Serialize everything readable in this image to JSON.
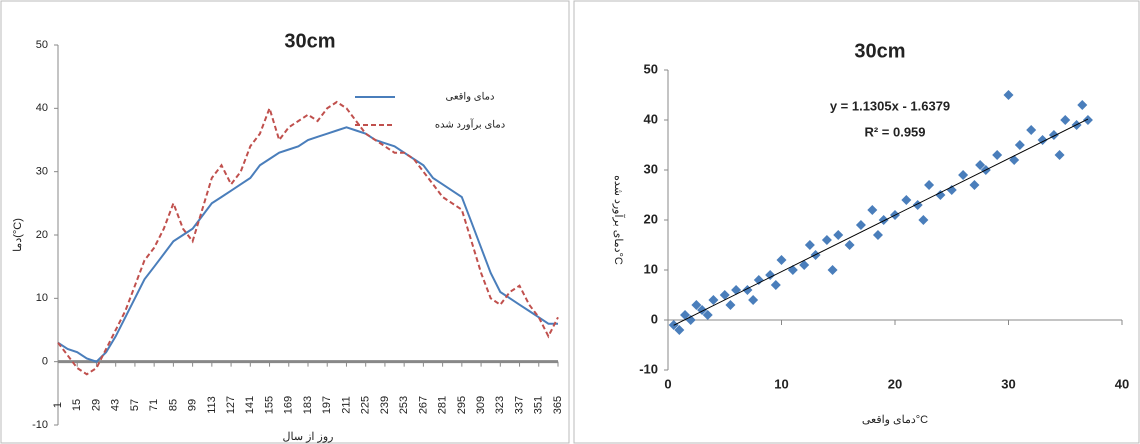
{
  "chart_data": [
    {
      "type": "line",
      "title": "30cm",
      "x_label": "روز از سال",
      "y_label": "دما(°C)",
      "x": [
        1,
        8,
        15,
        22,
        29,
        36,
        43,
        50,
        57,
        64,
        71,
        78,
        85,
        92,
        99,
        106,
        113,
        120,
        127,
        134,
        141,
        148,
        155,
        162,
        169,
        176,
        183,
        190,
        197,
        204,
        211,
        218,
        225,
        232,
        239,
        246,
        253,
        260,
        267,
        274,
        281,
        288,
        295,
        302,
        309,
        316,
        323,
        330,
        337,
        344,
        351,
        358,
        365
      ],
      "series": [
        {
          "name": "دمای واقعی",
          "color": "#4a7ebb",
          "dash": false,
          "values": [
            3,
            2,
            1.5,
            0.5,
            0,
            1.5,
            4,
            7,
            10,
            13,
            15,
            17,
            19,
            20,
            21,
            23,
            25,
            26,
            27,
            28,
            29,
            31,
            32,
            33,
            33.5,
            34,
            35,
            35.5,
            36,
            36.5,
            37,
            36.5,
            36,
            35,
            34.5,
            34,
            33,
            32,
            31,
            29,
            28,
            27,
            26,
            22,
            18,
            14,
            11,
            10,
            9,
            8,
            7,
            6,
            6
          ]
        },
        {
          "name": "دمای برآورد شده",
          "color": "#c0504d",
          "dash": true,
          "values": [
            3,
            1,
            -1,
            -2,
            -1,
            2,
            5,
            8,
            12,
            16,
            18,
            21,
            25,
            21,
            19,
            24,
            29,
            31,
            28,
            30,
            34,
            36,
            40,
            35,
            37,
            38,
            39,
            38,
            40,
            41,
            40,
            38,
            36,
            35,
            34,
            33,
            33,
            32,
            30,
            28,
            26,
            25,
            24,
            19,
            14,
            10,
            9,
            11,
            12,
            9,
            7,
            4,
            7
          ]
        }
      ],
      "xlim": [
        1,
        365
      ],
      "xticks": [
        1,
        15,
        29,
        43,
        57,
        71,
        85,
        99,
        113,
        127,
        141,
        155,
        169,
        183,
        197,
        211,
        225,
        239,
        253,
        267,
        281,
        295,
        309,
        323,
        337,
        351,
        365
      ],
      "ylim": [
        -10,
        50
      ],
      "yticks": [
        -10,
        0,
        10,
        20,
        30,
        40,
        50
      ],
      "legend": "upper-right"
    },
    {
      "type": "scatter",
      "title": "30cm",
      "x_label": "دمای واقعی°C",
      "y_label": "دمای برآورد شده°C",
      "x": [
        0.5,
        1,
        1.5,
        2,
        2.5,
        3,
        3.5,
        4,
        5,
        5.5,
        6,
        7,
        7.5,
        8,
        9,
        9.5,
        10,
        11,
        12,
        12.5,
        13,
        14,
        14.5,
        15,
        16,
        17,
        18,
        18.5,
        19,
        20,
        21,
        22,
        22.5,
        23,
        24,
        25,
        26,
        27,
        27.5,
        28,
        29,
        30,
        30.5,
        31,
        32,
        33,
        34,
        34.5,
        35,
        36,
        36.5,
        37
      ],
      "series": [
        {
          "color": "#4a7ebb",
          "values": [
            -1,
            -2,
            1,
            0,
            3,
            2,
            1,
            4,
            5,
            3,
            6,
            6,
            4,
            8,
            9,
            7,
            12,
            10,
            11,
            15,
            13,
            16,
            10,
            17,
            15,
            19,
            22,
            17,
            20,
            21,
            24,
            23,
            20,
            27,
            25,
            26,
            29,
            27,
            31,
            30,
            33,
            45,
            32,
            35,
            38,
            36,
            37,
            33,
            40,
            39,
            43,
            40
          ]
        }
      ],
      "trendline": {
        "slope": 1.1305,
        "intercept": -1.6379,
        "color": "#000000",
        "label": "y = 1.1305x - 1.6379",
        "r2_label": "R² = 0.959"
      },
      "xlim": [
        0,
        40
      ],
      "xticks": [
        0,
        10,
        20,
        30,
        40
      ],
      "ylim": [
        -10,
        50
      ],
      "yticks": [
        -10,
        0,
        10,
        20,
        30,
        40,
        50
      ]
    }
  ]
}
